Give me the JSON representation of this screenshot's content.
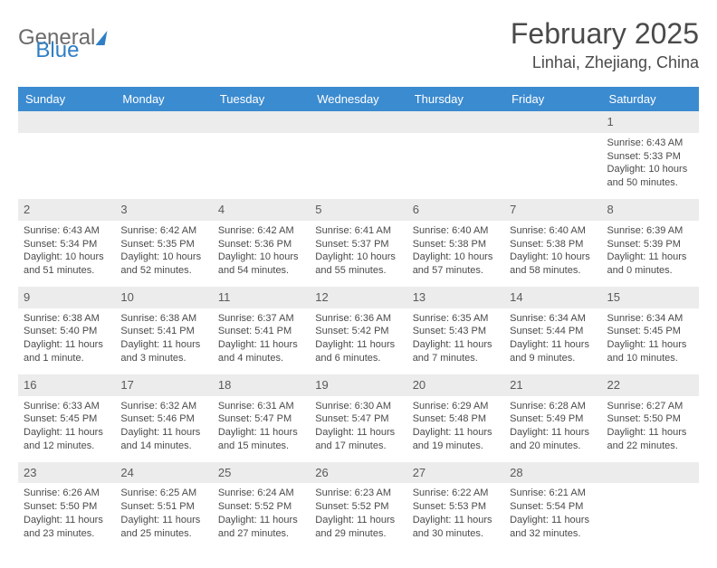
{
  "logo": {
    "part1": "General",
    "part2": "Blue"
  },
  "title": "February 2025",
  "location": "Linhai, Zhejiang, China",
  "colors": {
    "header_bg": "#3b8bd0",
    "header_text": "#ffffff",
    "daybar_bg": "#ececec",
    "text": "#4a4a4a",
    "logo_gray": "#6b6b6b",
    "logo_blue": "#2f7fc5"
  },
  "weekdays": [
    "Sunday",
    "Monday",
    "Tuesday",
    "Wednesday",
    "Thursday",
    "Friday",
    "Saturday"
  ],
  "weeks": [
    [
      {
        "n": "",
        "sr": "",
        "ss": "",
        "dl": ""
      },
      {
        "n": "",
        "sr": "",
        "ss": "",
        "dl": ""
      },
      {
        "n": "",
        "sr": "",
        "ss": "",
        "dl": ""
      },
      {
        "n": "",
        "sr": "",
        "ss": "",
        "dl": ""
      },
      {
        "n": "",
        "sr": "",
        "ss": "",
        "dl": ""
      },
      {
        "n": "",
        "sr": "",
        "ss": "",
        "dl": ""
      },
      {
        "n": "1",
        "sr": "Sunrise: 6:43 AM",
        "ss": "Sunset: 5:33 PM",
        "dl": "Daylight: 10 hours and 50 minutes."
      }
    ],
    [
      {
        "n": "2",
        "sr": "Sunrise: 6:43 AM",
        "ss": "Sunset: 5:34 PM",
        "dl": "Daylight: 10 hours and 51 minutes."
      },
      {
        "n": "3",
        "sr": "Sunrise: 6:42 AM",
        "ss": "Sunset: 5:35 PM",
        "dl": "Daylight: 10 hours and 52 minutes."
      },
      {
        "n": "4",
        "sr": "Sunrise: 6:42 AM",
        "ss": "Sunset: 5:36 PM",
        "dl": "Daylight: 10 hours and 54 minutes."
      },
      {
        "n": "5",
        "sr": "Sunrise: 6:41 AM",
        "ss": "Sunset: 5:37 PM",
        "dl": "Daylight: 10 hours and 55 minutes."
      },
      {
        "n": "6",
        "sr": "Sunrise: 6:40 AM",
        "ss": "Sunset: 5:38 PM",
        "dl": "Daylight: 10 hours and 57 minutes."
      },
      {
        "n": "7",
        "sr": "Sunrise: 6:40 AM",
        "ss": "Sunset: 5:38 PM",
        "dl": "Daylight: 10 hours and 58 minutes."
      },
      {
        "n": "8",
        "sr": "Sunrise: 6:39 AM",
        "ss": "Sunset: 5:39 PM",
        "dl": "Daylight: 11 hours and 0 minutes."
      }
    ],
    [
      {
        "n": "9",
        "sr": "Sunrise: 6:38 AM",
        "ss": "Sunset: 5:40 PM",
        "dl": "Daylight: 11 hours and 1 minute."
      },
      {
        "n": "10",
        "sr": "Sunrise: 6:38 AM",
        "ss": "Sunset: 5:41 PM",
        "dl": "Daylight: 11 hours and 3 minutes."
      },
      {
        "n": "11",
        "sr": "Sunrise: 6:37 AM",
        "ss": "Sunset: 5:41 PM",
        "dl": "Daylight: 11 hours and 4 minutes."
      },
      {
        "n": "12",
        "sr": "Sunrise: 6:36 AM",
        "ss": "Sunset: 5:42 PM",
        "dl": "Daylight: 11 hours and 6 minutes."
      },
      {
        "n": "13",
        "sr": "Sunrise: 6:35 AM",
        "ss": "Sunset: 5:43 PM",
        "dl": "Daylight: 11 hours and 7 minutes."
      },
      {
        "n": "14",
        "sr": "Sunrise: 6:34 AM",
        "ss": "Sunset: 5:44 PM",
        "dl": "Daylight: 11 hours and 9 minutes."
      },
      {
        "n": "15",
        "sr": "Sunrise: 6:34 AM",
        "ss": "Sunset: 5:45 PM",
        "dl": "Daylight: 11 hours and 10 minutes."
      }
    ],
    [
      {
        "n": "16",
        "sr": "Sunrise: 6:33 AM",
        "ss": "Sunset: 5:45 PM",
        "dl": "Daylight: 11 hours and 12 minutes."
      },
      {
        "n": "17",
        "sr": "Sunrise: 6:32 AM",
        "ss": "Sunset: 5:46 PM",
        "dl": "Daylight: 11 hours and 14 minutes."
      },
      {
        "n": "18",
        "sr": "Sunrise: 6:31 AM",
        "ss": "Sunset: 5:47 PM",
        "dl": "Daylight: 11 hours and 15 minutes."
      },
      {
        "n": "19",
        "sr": "Sunrise: 6:30 AM",
        "ss": "Sunset: 5:47 PM",
        "dl": "Daylight: 11 hours and 17 minutes."
      },
      {
        "n": "20",
        "sr": "Sunrise: 6:29 AM",
        "ss": "Sunset: 5:48 PM",
        "dl": "Daylight: 11 hours and 19 minutes."
      },
      {
        "n": "21",
        "sr": "Sunrise: 6:28 AM",
        "ss": "Sunset: 5:49 PM",
        "dl": "Daylight: 11 hours and 20 minutes."
      },
      {
        "n": "22",
        "sr": "Sunrise: 6:27 AM",
        "ss": "Sunset: 5:50 PM",
        "dl": "Daylight: 11 hours and 22 minutes."
      }
    ],
    [
      {
        "n": "23",
        "sr": "Sunrise: 6:26 AM",
        "ss": "Sunset: 5:50 PM",
        "dl": "Daylight: 11 hours and 23 minutes."
      },
      {
        "n": "24",
        "sr": "Sunrise: 6:25 AM",
        "ss": "Sunset: 5:51 PM",
        "dl": "Daylight: 11 hours and 25 minutes."
      },
      {
        "n": "25",
        "sr": "Sunrise: 6:24 AM",
        "ss": "Sunset: 5:52 PM",
        "dl": "Daylight: 11 hours and 27 minutes."
      },
      {
        "n": "26",
        "sr": "Sunrise: 6:23 AM",
        "ss": "Sunset: 5:52 PM",
        "dl": "Daylight: 11 hours and 29 minutes."
      },
      {
        "n": "27",
        "sr": "Sunrise: 6:22 AM",
        "ss": "Sunset: 5:53 PM",
        "dl": "Daylight: 11 hours and 30 minutes."
      },
      {
        "n": "28",
        "sr": "Sunrise: 6:21 AM",
        "ss": "Sunset: 5:54 PM",
        "dl": "Daylight: 11 hours and 32 minutes."
      },
      {
        "n": "",
        "sr": "",
        "ss": "",
        "dl": ""
      }
    ]
  ]
}
